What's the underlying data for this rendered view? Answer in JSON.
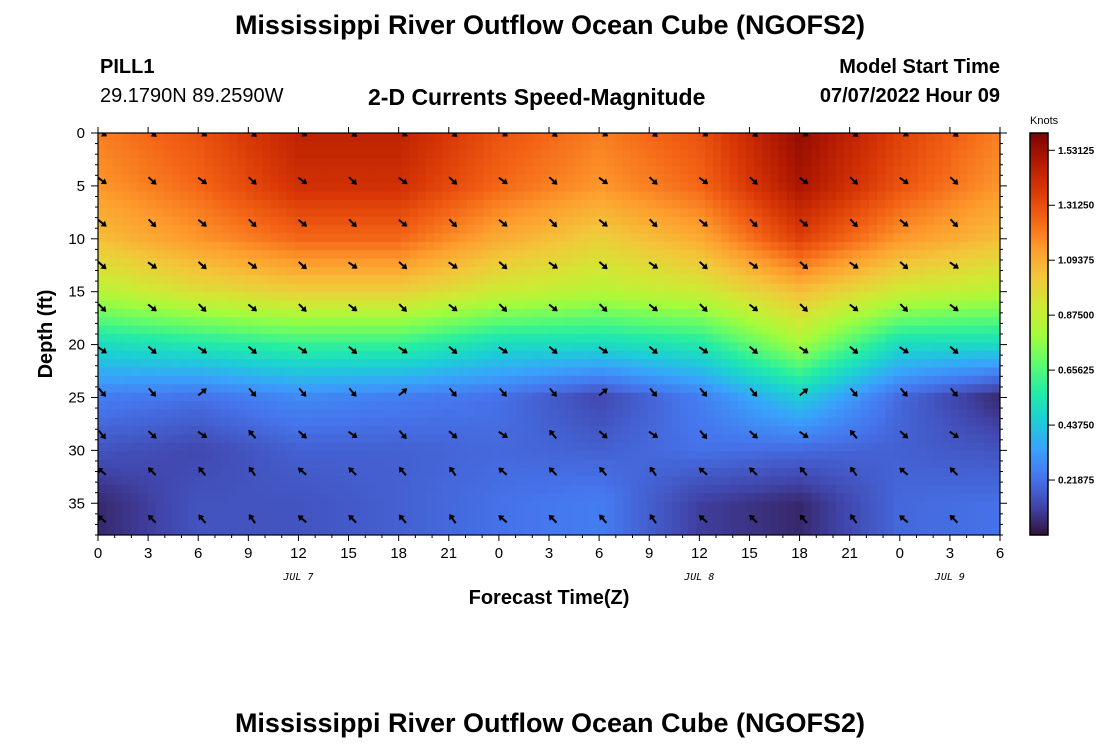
{
  "page": {
    "title_top": "Mississippi River Outflow Ocean Cube (NGOFS2)",
    "title_bottom": "Mississippi River Outflow Ocean Cube (NGOFS2)",
    "station": "PILL1",
    "coords": "29.1790N  89.2590W",
    "subtitle": "2-D Currents Speed-Magnitude",
    "model_start_label": "Model Start Time",
    "model_start_value": "07/07/2022 Hour 09"
  },
  "chart_data": {
    "type": "heatmap",
    "xlabel": "Forecast Time(Z)",
    "ylabel": "Depth (ft)",
    "x_range_hours": [
      0,
      54
    ],
    "y_range_ft": [
      0,
      38
    ],
    "y_inverted": true,
    "x_ticks": [
      {
        "h": 0,
        "label": "0"
      },
      {
        "h": 3,
        "label": "3"
      },
      {
        "h": 6,
        "label": "6"
      },
      {
        "h": 9,
        "label": "9"
      },
      {
        "h": 12,
        "label": "12"
      },
      {
        "h": 15,
        "label": "15"
      },
      {
        "h": 18,
        "label": "18"
      },
      {
        "h": 21,
        "label": "21"
      },
      {
        "h": 24,
        "label": "0"
      },
      {
        "h": 27,
        "label": "3"
      },
      {
        "h": 30,
        "label": "6"
      },
      {
        "h": 33,
        "label": "9"
      },
      {
        "h": 36,
        "label": "12"
      },
      {
        "h": 39,
        "label": "15"
      },
      {
        "h": 42,
        "label": "18"
      },
      {
        "h": 45,
        "label": "21"
      },
      {
        "h": 48,
        "label": "0"
      },
      {
        "h": 51,
        "label": "3"
      },
      {
        "h": 54,
        "label": "6"
      }
    ],
    "date_labels": [
      {
        "h": 12,
        "label": "JUL 7"
      },
      {
        "h": 36,
        "label": "JUL 8"
      },
      {
        "h": 51,
        "label": "JUL 9"
      }
    ],
    "y_ticks": [
      0,
      5,
      10,
      15,
      20,
      25,
      30,
      35
    ],
    "colorbar": {
      "unit": "Knots",
      "min": 0,
      "max": 1.6,
      "labels": [
        "1.53125",
        "1.31250",
        "1.09375",
        "0.87500",
        "0.65625",
        "0.43750",
        "0.21875"
      ]
    },
    "depth_levels_ft": [
      0,
      4.5,
      8.5,
      12.5,
      16.5,
      20.5,
      24.5,
      28.5,
      32,
      36.5
    ],
    "vector_times_hours": [
      0,
      3,
      6,
      9,
      12,
      15,
      18,
      21,
      24,
      27,
      30,
      33,
      36,
      39,
      42,
      45,
      48,
      51,
      54
    ],
    "speed_samples_knots": {
      "hours": [
        0,
        6,
        12,
        18,
        24,
        30,
        36,
        42,
        48,
        54
      ],
      "depths_ft": [
        0,
        5,
        10,
        15,
        20,
        25,
        30,
        35
      ],
      "values": [
        [
          1.2,
          1.3,
          1.45,
          1.45,
          1.3,
          1.2,
          1.3,
          1.55,
          1.35,
          1.2
        ],
        [
          1.15,
          1.25,
          1.4,
          1.4,
          1.25,
          1.15,
          1.25,
          1.5,
          1.3,
          1.15
        ],
        [
          1.05,
          1.15,
          1.25,
          1.25,
          1.1,
          1.0,
          1.1,
          1.35,
          1.15,
          1.05
        ],
        [
          0.85,
          0.95,
          1.0,
          1.0,
          0.9,
          0.85,
          0.9,
          1.05,
          0.9,
          0.85
        ],
        [
          0.5,
          0.55,
          0.6,
          0.6,
          0.5,
          0.5,
          0.55,
          0.8,
          0.5,
          0.5
        ],
        [
          0.25,
          0.22,
          0.28,
          0.25,
          0.22,
          0.12,
          0.25,
          0.45,
          0.2,
          0.05
        ],
        [
          0.15,
          0.12,
          0.18,
          0.18,
          0.2,
          0.18,
          0.22,
          0.2,
          0.18,
          0.15
        ],
        [
          0.05,
          0.15,
          0.15,
          0.18,
          0.22,
          0.25,
          0.1,
          0.05,
          0.2,
          0.22
        ]
      ]
    },
    "colors": {
      "stops": [
        "#30123b",
        "#4145ab",
        "#4675ed",
        "#39a2fc",
        "#1bcfd4",
        "#24eca6",
        "#61fc6c",
        "#a4fc3b",
        "#d1e834",
        "#f3c63a",
        "#fe9b2d",
        "#f36315",
        "#d93806",
        "#b11901",
        "#7a0402"
      ]
    }
  }
}
